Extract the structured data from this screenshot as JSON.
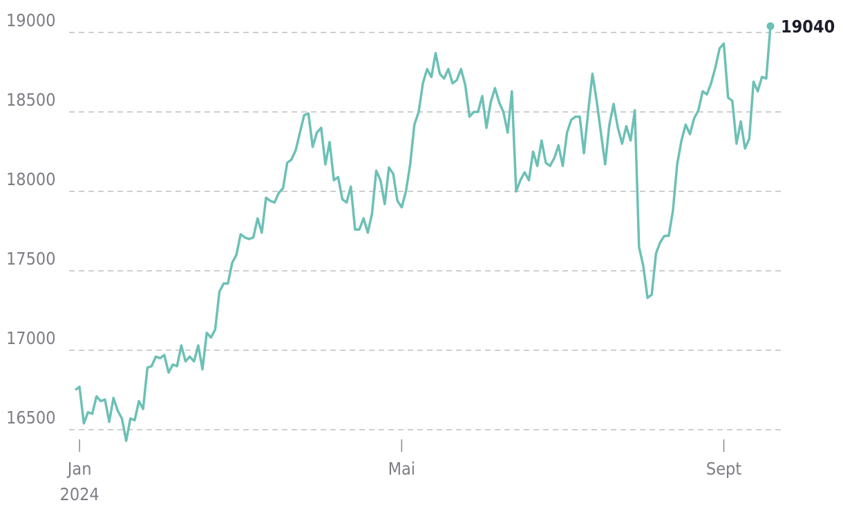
{
  "chart_data": {
    "type": "line",
    "categories": [
      null,
      "Jan",
      null,
      null,
      null,
      null,
      null,
      null,
      null,
      null,
      null,
      null,
      null,
      null,
      null,
      null,
      null,
      null,
      null,
      null,
      null,
      null,
      null,
      null,
      null,
      null,
      null,
      null,
      null,
      null,
      null,
      null,
      null,
      null,
      null,
      null,
      null,
      null,
      null,
      null,
      null,
      null,
      null,
      null,
      null,
      null,
      null,
      null,
      null,
      null,
      null,
      null,
      null,
      null,
      null,
      null,
      null,
      null,
      null,
      null,
      null,
      null,
      null,
      null,
      null,
      null,
      null,
      null,
      null,
      null,
      null,
      null,
      null,
      null,
      null,
      null,
      null,
      "Mai",
      null,
      null,
      null,
      null,
      null,
      null,
      null,
      null,
      null,
      null,
      null,
      null,
      null,
      null,
      null,
      null,
      null,
      null,
      null,
      null,
      null,
      null,
      null,
      null,
      null,
      null,
      null,
      null,
      null,
      null,
      null,
      null,
      null,
      null,
      null,
      null,
      null,
      null,
      null,
      null,
      null,
      null,
      null,
      null,
      null,
      null,
      null,
      null,
      null,
      null,
      null,
      null,
      null,
      null,
      null,
      null,
      null,
      null,
      null,
      null,
      null,
      null,
      null,
      null,
      null,
      null,
      null,
      null,
      null,
      null,
      null,
      null,
      null,
      null,
      null,
      "Sept",
      null,
      null,
      null,
      null,
      null,
      null,
      null,
      null,
      null,
      null,
      null
    ],
    "year_label": "2024",
    "values": [
      16750,
      16770,
      16540,
      16610,
      16600,
      16710,
      16680,
      16690,
      16550,
      16700,
      16620,
      16570,
      16430,
      16570,
      16560,
      16680,
      16630,
      16890,
      16900,
      16960,
      16950,
      16970,
      16860,
      16910,
      16900,
      17030,
      16930,
      16960,
      16930,
      17030,
      16880,
      17110,
      17080,
      17130,
      17370,
      17420,
      17420,
      17550,
      17600,
      17730,
      17710,
      17700,
      17710,
      17830,
      17740,
      17960,
      17940,
      17930,
      17990,
      18020,
      18180,
      18200,
      18260,
      18370,
      18480,
      18490,
      18280,
      18370,
      18400,
      18170,
      18310,
      18070,
      18090,
      17950,
      17930,
      18030,
      17760,
      17760,
      17830,
      17740,
      17860,
      18130,
      18070,
      17920,
      18150,
      18110,
      17940,
      17900,
      18000,
      18170,
      18420,
      18500,
      18680,
      18770,
      18720,
      18870,
      18740,
      18710,
      18770,
      18680,
      18700,
      18770,
      18670,
      18470,
      18500,
      18500,
      18600,
      18400,
      18560,
      18650,
      18560,
      18500,
      18370,
      18630,
      18000,
      18070,
      18120,
      18070,
      18250,
      18160,
      18320,
      18180,
      18160,
      18210,
      18290,
      18160,
      18370,
      18450,
      18470,
      18470,
      18240,
      18500,
      18740,
      18570,
      18370,
      18170,
      18420,
      18550,
      18400,
      18300,
      18410,
      18320,
      18510,
      17650,
      17530,
      17330,
      17350,
      17610,
      17680,
      17720,
      17720,
      17880,
      18170,
      18320,
      18420,
      18360,
      18460,
      18510,
      18630,
      18610,
      18680,
      18780,
      18900,
      18930,
      18590,
      18570,
      18300,
      18440,
      18270,
      18330,
      18690,
      18630,
      18720,
      18710,
      19040
    ],
    "color": "#6cc0b5",
    "ylim": [
      16400,
      19100
    ],
    "yticks": [
      16500,
      17000,
      17500,
      18000,
      18500,
      19000
    ],
    "grid": true
  }
}
